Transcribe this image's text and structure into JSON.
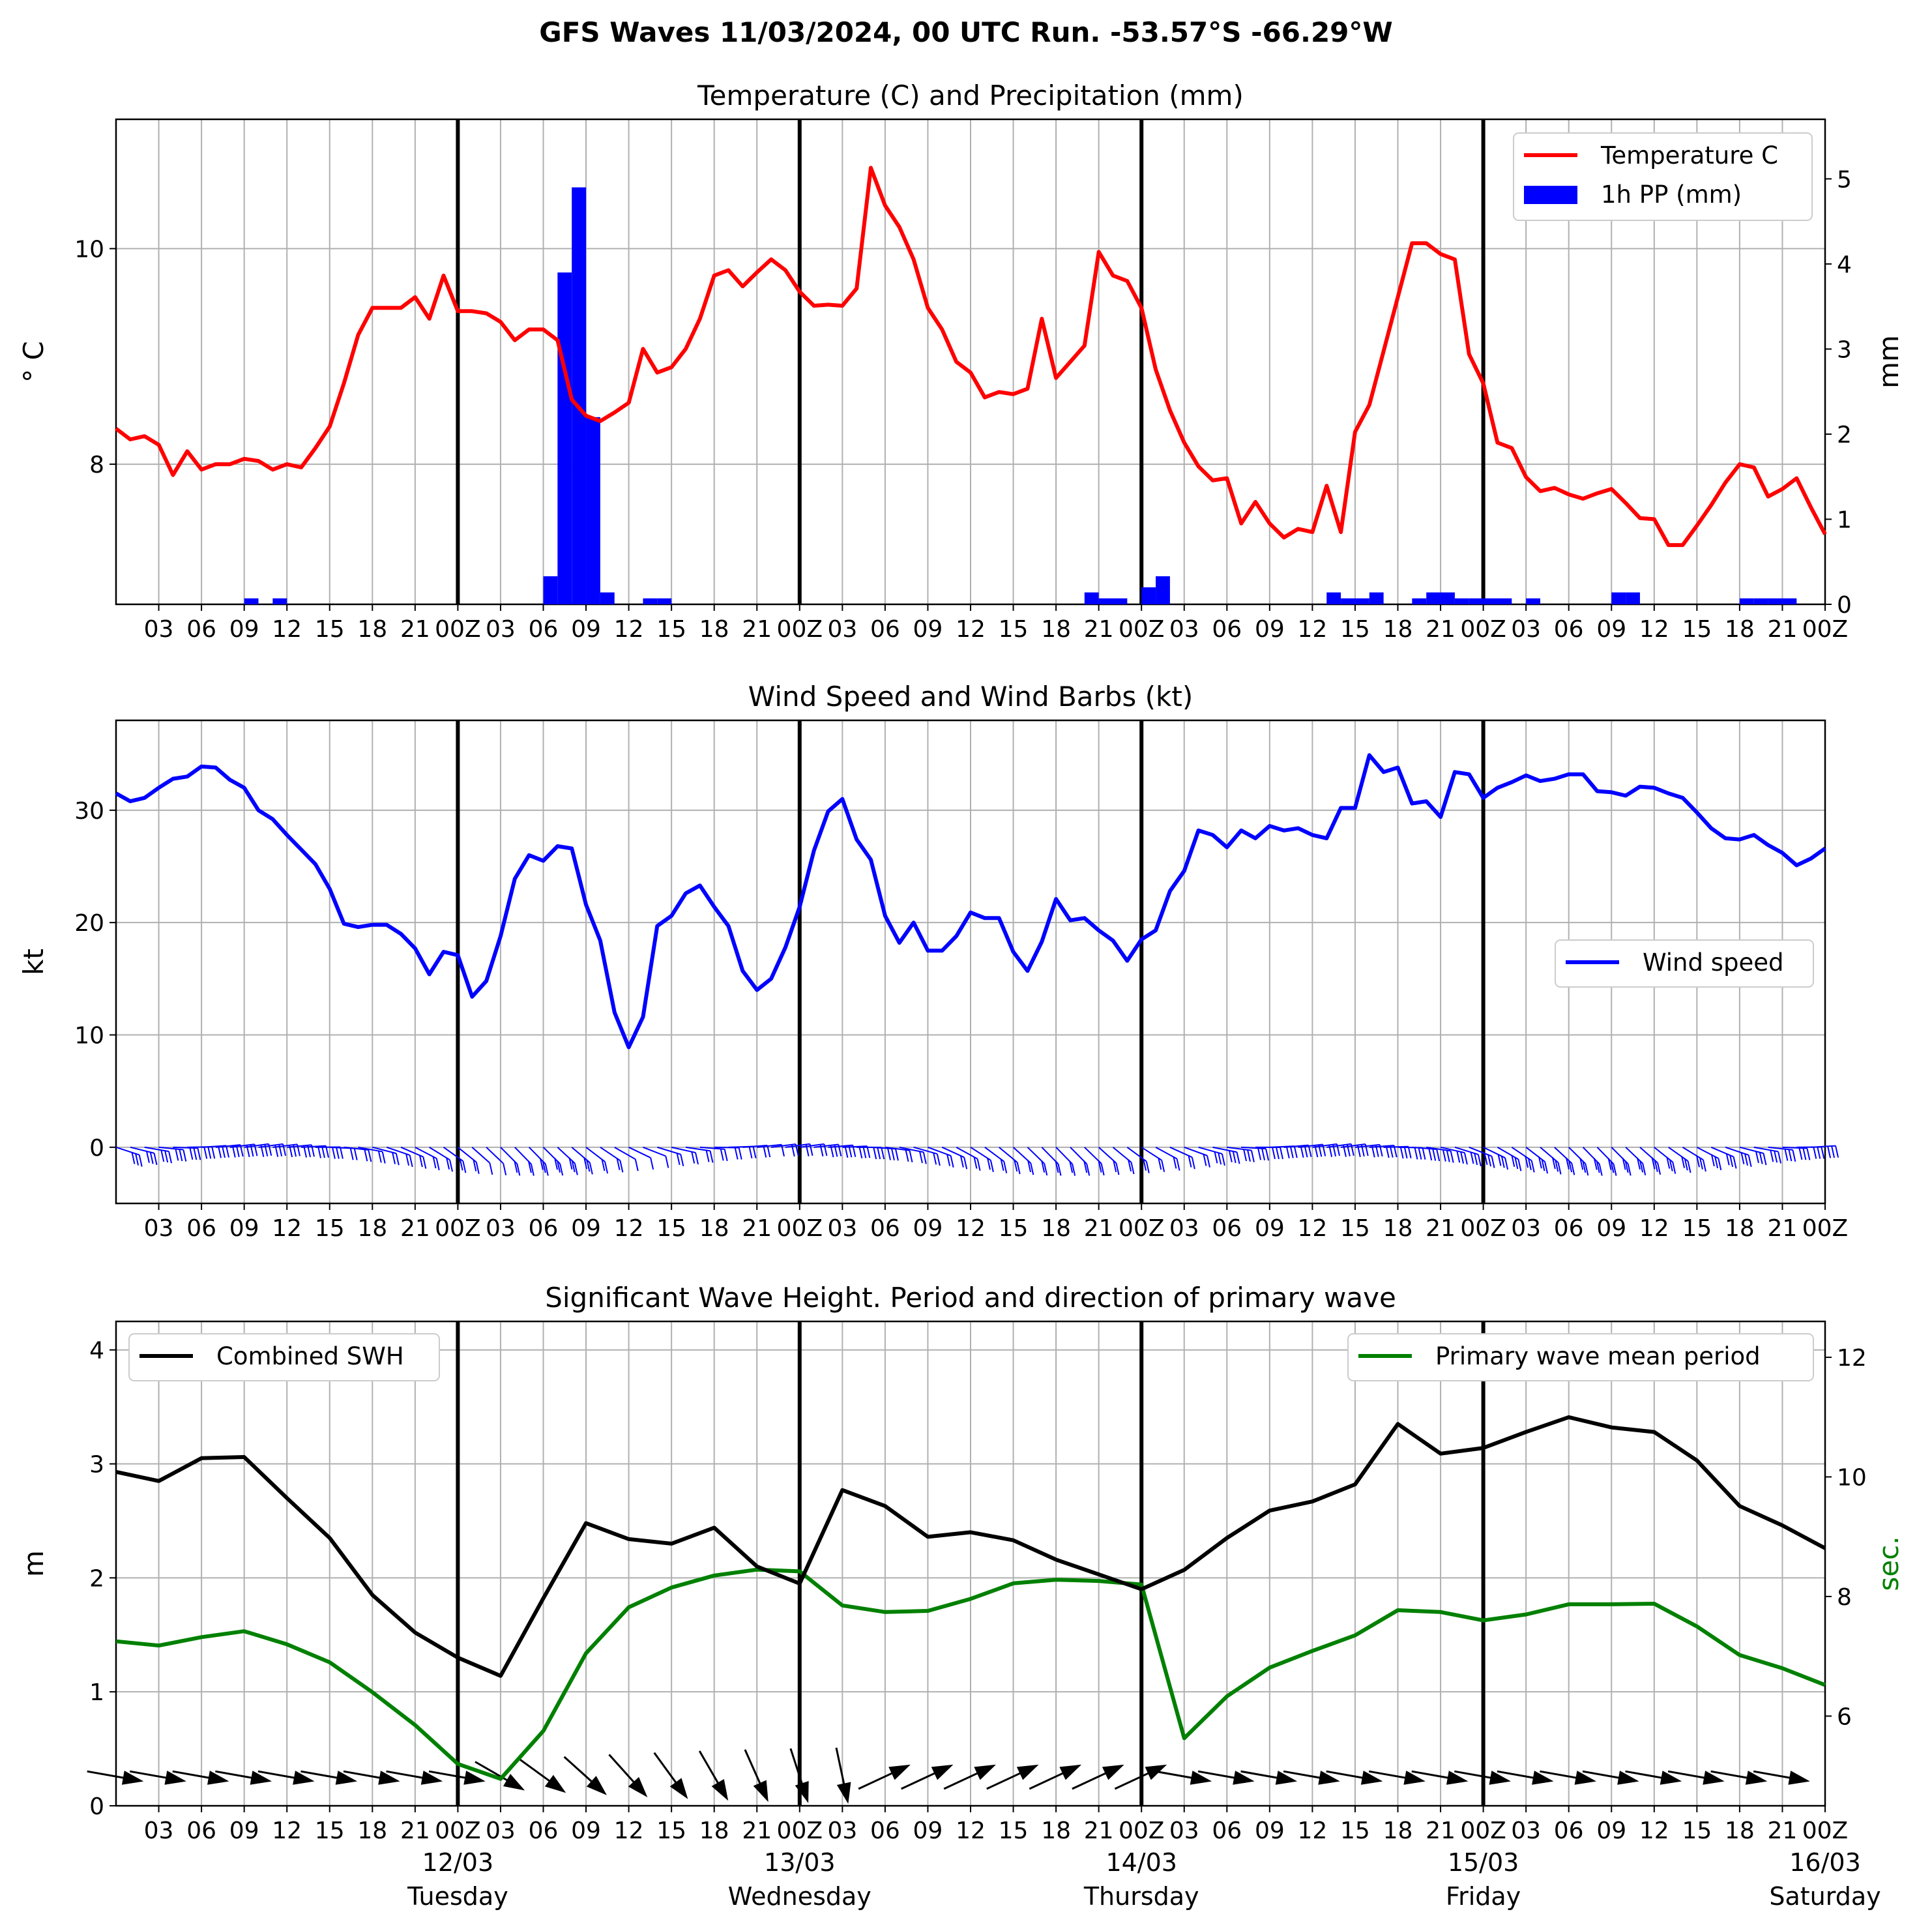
{
  "suptitle": "GFS Waves 11/03/2024, 00 UTC Run. -53.57°S -66.29°W",
  "hour_ticks": [
    "03",
    "06",
    "09",
    "12",
    "15",
    "18",
    "21",
    "00Z",
    "03",
    "06",
    "09",
    "12",
    "15",
    "18",
    "21",
    "00Z",
    "03",
    "06",
    "09",
    "12",
    "15",
    "18",
    "21",
    "00Z",
    "03",
    "06",
    "09",
    "12",
    "15",
    "18",
    "21",
    "00Z",
    "03",
    "06",
    "09",
    "12",
    "15",
    "18",
    "21",
    "00Z"
  ],
  "day_labels": [
    {
      "date": "12/03",
      "weekday": "Tuesday"
    },
    {
      "date": "13/03",
      "weekday": "Wednesday"
    },
    {
      "date": "14/03",
      "weekday": "Thursday"
    },
    {
      "date": "15/03",
      "weekday": "Friday"
    },
    {
      "date": "16/03",
      "weekday": "Saturday"
    }
  ],
  "colors": {
    "temperature": "#ff0000",
    "precip": "#0000ff",
    "wind": "#0000ff",
    "swh": "#000000",
    "period": "#008000",
    "grid": "#b0b0b0"
  },
  "chart_data": [
    {
      "type": "line",
      "title": "Temperature (C) and Precipitation (mm)",
      "xlabel": "",
      "x_unit": "hours since 11/03/2024 00 UTC",
      "xlim": [
        0,
        120
      ],
      "ylabel": "° C",
      "ylim": [
        6.7,
        11.2
      ],
      "yticks": [
        8,
        10
      ],
      "y2label": "mm",
      "y2lim": [
        0,
        5.7
      ],
      "y2ticks": [
        0,
        1,
        2,
        3,
        4,
        5
      ],
      "legend": "top-right",
      "grid": true,
      "series": [
        {
          "name": "Temperature C",
          "axis": "left",
          "x": [
            0,
            1,
            2,
            3,
            4,
            5,
            6,
            7,
            8,
            9,
            10,
            11,
            12,
            13,
            14,
            15,
            16,
            17,
            18,
            19,
            20,
            21,
            22,
            23,
            24,
            25,
            26,
            27,
            28,
            29,
            30,
            31,
            32,
            33,
            34,
            35,
            36,
            37,
            38,
            39,
            40,
            41,
            42,
            43,
            44,
            45,
            46,
            47,
            48,
            49,
            50,
            51,
            52,
            53,
            54,
            55,
            56,
            57,
            58,
            59,
            60,
            61,
            62,
            63,
            64,
            65,
            66,
            67,
            68,
            69,
            70,
            71,
            72,
            73,
            74,
            75,
            76,
            77,
            78,
            79,
            80,
            81,
            82,
            83,
            84,
            85,
            86,
            87,
            88,
            89,
            90,
            91,
            92,
            93,
            94,
            95,
            96,
            97,
            98,
            99,
            100,
            101,
            102,
            103,
            104,
            105,
            106,
            107,
            108,
            109,
            110,
            111,
            112,
            113,
            114,
            115,
            116,
            117,
            118,
            119,
            120
          ],
          "values": [
            8.33,
            8.23,
            8.26,
            8.18,
            7.9,
            8.12,
            7.95,
            8.0,
            8.0,
            8.05,
            8.03,
            7.95,
            8.0,
            7.97,
            8.15,
            8.35,
            8.75,
            9.2,
            9.45,
            9.45,
            9.45,
            9.55,
            9.35,
            9.75,
            9.42,
            9.42,
            9.4,
            9.32,
            9.15,
            9.25,
            9.25,
            9.15,
            8.6,
            8.45,
            8.4,
            8.48,
            8.57,
            9.07,
            8.85,
            8.9,
            9.07,
            9.35,
            9.75,
            9.8,
            9.65,
            9.78,
            9.9,
            9.8,
            9.6,
            9.47,
            9.48,
            9.47,
            9.63,
            10.75,
            10.4,
            10.2,
            9.9,
            9.45,
            9.25,
            8.95,
            8.85,
            8.62,
            8.67,
            8.65,
            8.7,
            9.35,
            8.8,
            8.95,
            9.1,
            9.97,
            9.75,
            9.7,
            9.45,
            8.88,
            8.5,
            8.2,
            7.98,
            7.85,
            7.87,
            7.45,
            7.65,
            7.45,
            7.32,
            7.4,
            7.37,
            7.8,
            7.37,
            8.3,
            8.55,
            9.05,
            9.55,
            10.05,
            10.05,
            9.95,
            9.9,
            9.02,
            8.75,
            8.2,
            8.15,
            7.88,
            7.75,
            7.78,
            7.72,
            7.68,
            7.73,
            7.77,
            7.64,
            7.5,
            7.49,
            7.25,
            7.25,
            7.43,
            7.62,
            7.83,
            8.0,
            7.97,
            7.7,
            7.77,
            7.87,
            7.6,
            7.35
          ]
        },
        {
          "name": "1h PP (mm)",
          "axis": "right",
          "kind": "bar",
          "bar_width_hours": 1,
          "x": [
            9.5,
            11.5,
            30.5,
            31.5,
            32.5,
            33.5,
            34.5,
            37.5,
            38.5,
            68.5,
            69.5,
            70.5,
            72.5,
            73.5,
            85.5,
            86.5,
            87.5,
            88.5,
            91.5,
            92.5,
            93.5,
            94.5,
            95.5,
            96.5,
            97.5,
            99.5,
            105.5,
            106.5,
            114.5,
            115.5,
            116.5,
            117.5
          ],
          "values": [
            0.07,
            0.07,
            0.33,
            3.9,
            4.9,
            2.2,
            0.14,
            0.07,
            0.07,
            0.14,
            0.07,
            0.07,
            0.2,
            0.33,
            0.14,
            0.07,
            0.07,
            0.14,
            0.07,
            0.14,
            0.14,
            0.07,
            0.07,
            0.07,
            0.07,
            0.07,
            0.14,
            0.14,
            0.07,
            0.07,
            0.07,
            0.07
          ]
        }
      ]
    },
    {
      "type": "line",
      "title": "Wind Speed and Wind Barbs (kt)",
      "xlabel": "",
      "x_unit": "hours since 11/03/2024 00 UTC",
      "xlim": [
        0,
        120
      ],
      "ylabel": "kt",
      "ylim": [
        -5,
        38
      ],
      "yticks": [
        0,
        10,
        20,
        30
      ],
      "legend": "center-right",
      "grid": true,
      "series": [
        {
          "name": "Wind speed",
          "x": [
            0,
            1,
            2,
            3,
            4,
            5,
            6,
            7,
            8,
            9,
            10,
            11,
            12,
            13,
            14,
            15,
            16,
            17,
            18,
            19,
            20,
            21,
            22,
            23,
            24,
            25,
            26,
            27,
            28,
            29,
            30,
            31,
            32,
            33,
            34,
            35,
            36,
            37,
            38,
            39,
            40,
            41,
            42,
            43,
            44,
            45,
            46,
            47,
            48,
            49,
            50,
            51,
            52,
            53,
            54,
            55,
            56,
            57,
            58,
            59,
            60,
            61,
            62,
            63,
            64,
            65,
            66,
            67,
            68,
            69,
            70,
            71,
            72,
            73,
            74,
            75,
            76,
            77,
            78,
            79,
            80,
            81,
            82,
            83,
            84,
            85,
            86,
            87,
            88,
            89,
            90,
            91,
            92,
            93,
            94,
            95,
            96,
            97,
            98,
            99,
            100,
            101,
            102,
            103,
            104,
            105,
            106,
            107,
            108,
            109,
            110,
            111,
            112,
            113,
            114,
            115,
            116,
            117,
            118,
            119,
            120
          ],
          "values": [
            31.5,
            30.8,
            31.1,
            32.0,
            32.8,
            33.0,
            33.9,
            33.8,
            32.7,
            32.0,
            30.0,
            29.2,
            27.8,
            26.5,
            25.2,
            23.0,
            19.9,
            19.6,
            19.8,
            19.8,
            19.0,
            17.7,
            15.4,
            17.4,
            17.1,
            13.4,
            14.8,
            18.8,
            23.9,
            26.0,
            25.5,
            26.8,
            26.6,
            21.6,
            18.4,
            12.0,
            8.9,
            11.6,
            19.7,
            20.6,
            22.6,
            23.3,
            21.4,
            19.7,
            15.7,
            14.0,
            15.0,
            17.8,
            21.4,
            26.4,
            29.9,
            31.0,
            27.4,
            25.6,
            20.6,
            18.2,
            20.0,
            17.5,
            17.5,
            18.8,
            20.9,
            20.4,
            20.4,
            17.4,
            15.7,
            18.3,
            22.1,
            20.2,
            20.4,
            19.3,
            18.4,
            16.6,
            18.5,
            19.3,
            22.8,
            24.6,
            28.2,
            27.8,
            26.7,
            28.2,
            27.5,
            28.6,
            28.2,
            28.4,
            27.8,
            27.5,
            30.2,
            30.2,
            34.9,
            33.4,
            33.8,
            30.6,
            30.8,
            29.4,
            33.4,
            33.2,
            31.1,
            32.0,
            32.5,
            33.1,
            32.6,
            32.8,
            33.2,
            33.2,
            31.7,
            31.6,
            31.3,
            32.1,
            32.0,
            31.5,
            31.1,
            29.8,
            28.4,
            27.5,
            27.4,
            27.8,
            26.9,
            26.2,
            25.1,
            25.7,
            26.6
          ]
        }
      ],
      "barbs": "wind barbs plotted hourly along the x axis"
    },
    {
      "type": "line",
      "title": "Significant Wave Height. Period and direction of primary wave",
      "xlabel": "",
      "x_unit": "hours since 11/03/2024 00 UTC",
      "xlim": [
        0,
        120
      ],
      "ylabel": "m",
      "ylim": [
        0,
        4.25
      ],
      "yticks": [
        0,
        1,
        2,
        3,
        4
      ],
      "y2label": "sec.",
      "y2lim": [
        4.5,
        12.6
      ],
      "y2ticks": [
        6,
        8,
        10,
        12
      ],
      "legend": "top-left / top-right",
      "grid": true,
      "series": [
        {
          "name": "Combined SWH",
          "axis": "left",
          "x": [
            0,
            3,
            6,
            9,
            12,
            15,
            18,
            21,
            24,
            27,
            30,
            33,
            36,
            39,
            42,
            45,
            48,
            51,
            54,
            57,
            60,
            63,
            66,
            69,
            72,
            75,
            78,
            81,
            84,
            87,
            90,
            93,
            96,
            99,
            102,
            105,
            108,
            111,
            114,
            117,
            120
          ],
          "values": [
            2.93,
            2.85,
            3.05,
            3.06,
            2.7,
            2.35,
            1.85,
            1.52,
            1.3,
            1.14,
            1.82,
            2.48,
            2.34,
            2.3,
            2.44,
            2.1,
            1.95,
            2.77,
            2.63,
            2.36,
            2.4,
            2.33,
            2.16,
            2.03,
            1.9,
            2.07,
            2.35,
            2.59,
            2.67,
            2.82,
            3.35,
            3.09,
            3.14,
            3.28,
            3.41,
            3.32,
            3.28,
            3.03,
            2.63,
            2.46,
            2.26
          ]
        },
        {
          "name": "Primary wave mean period",
          "axis": "right",
          "x": [
            0,
            3,
            6,
            9,
            12,
            15,
            18,
            21,
            24,
            27,
            30,
            33,
            36,
            39,
            42,
            45,
            48,
            51,
            54,
            57,
            60,
            63,
            66,
            69,
            72,
            75,
            78,
            81,
            84,
            87,
            90,
            93,
            96,
            99,
            102,
            105,
            108,
            111,
            114,
            117,
            120
          ],
          "values": [
            7.25,
            7.18,
            7.32,
            7.42,
            7.2,
            6.9,
            6.4,
            5.85,
            5.2,
            4.95,
            5.75,
            7.05,
            7.82,
            8.15,
            8.35,
            8.45,
            8.42,
            7.85,
            7.74,
            7.76,
            7.96,
            8.22,
            8.28,
            8.26,
            8.2,
            5.63,
            6.33,
            6.81,
            7.09,
            7.35,
            7.77,
            7.74,
            7.6,
            7.7,
            7.87,
            7.87,
            7.88,
            7.5,
            7.02,
            6.8,
            6.52
          ]
        }
      ],
      "arrows": "primary wave direction arrows plotted every 3 hours"
    }
  ]
}
